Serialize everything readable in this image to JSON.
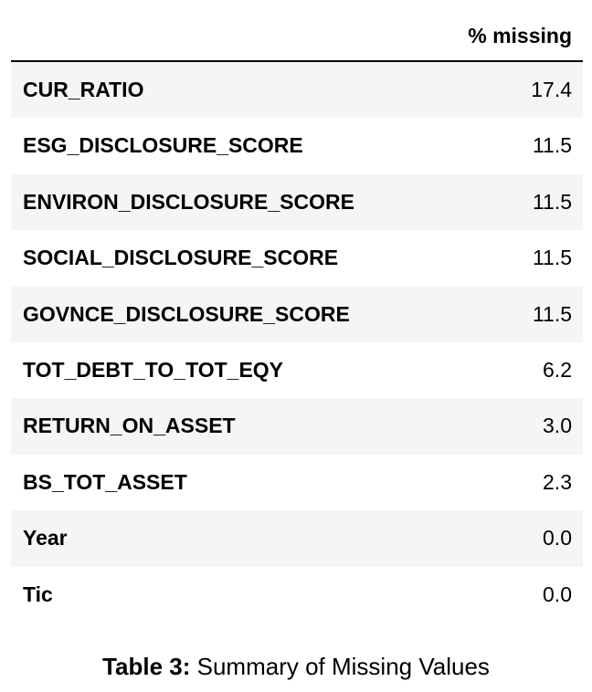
{
  "table": {
    "header_label": "% missing",
    "rows": [
      {
        "name": "CUR_RATIO",
        "value": "17.4"
      },
      {
        "name": "ESG_DISCLOSURE_SCORE",
        "value": "11.5"
      },
      {
        "name": "ENVIRON_DISCLOSURE_SCORE",
        "value": "11.5"
      },
      {
        "name": "SOCIAL_DISCLOSURE_SCORE",
        "value": "11.5"
      },
      {
        "name": "GOVNCE_DISCLOSURE_SCORE",
        "value": "11.5"
      },
      {
        "name": "TOT_DEBT_TO_TOT_EQY",
        "value": "6.2"
      },
      {
        "name": "RETURN_ON_ASSET",
        "value": "3.0"
      },
      {
        "name": "BS_TOT_ASSET",
        "value": "2.3"
      },
      {
        "name": "Year",
        "value": "0.0"
      },
      {
        "name": "Tic",
        "value": "0.0"
      }
    ],
    "stripe_color": "#f5f5f5"
  },
  "caption": {
    "label": "Table 3:",
    "text": "Summary of Missing Values"
  }
}
